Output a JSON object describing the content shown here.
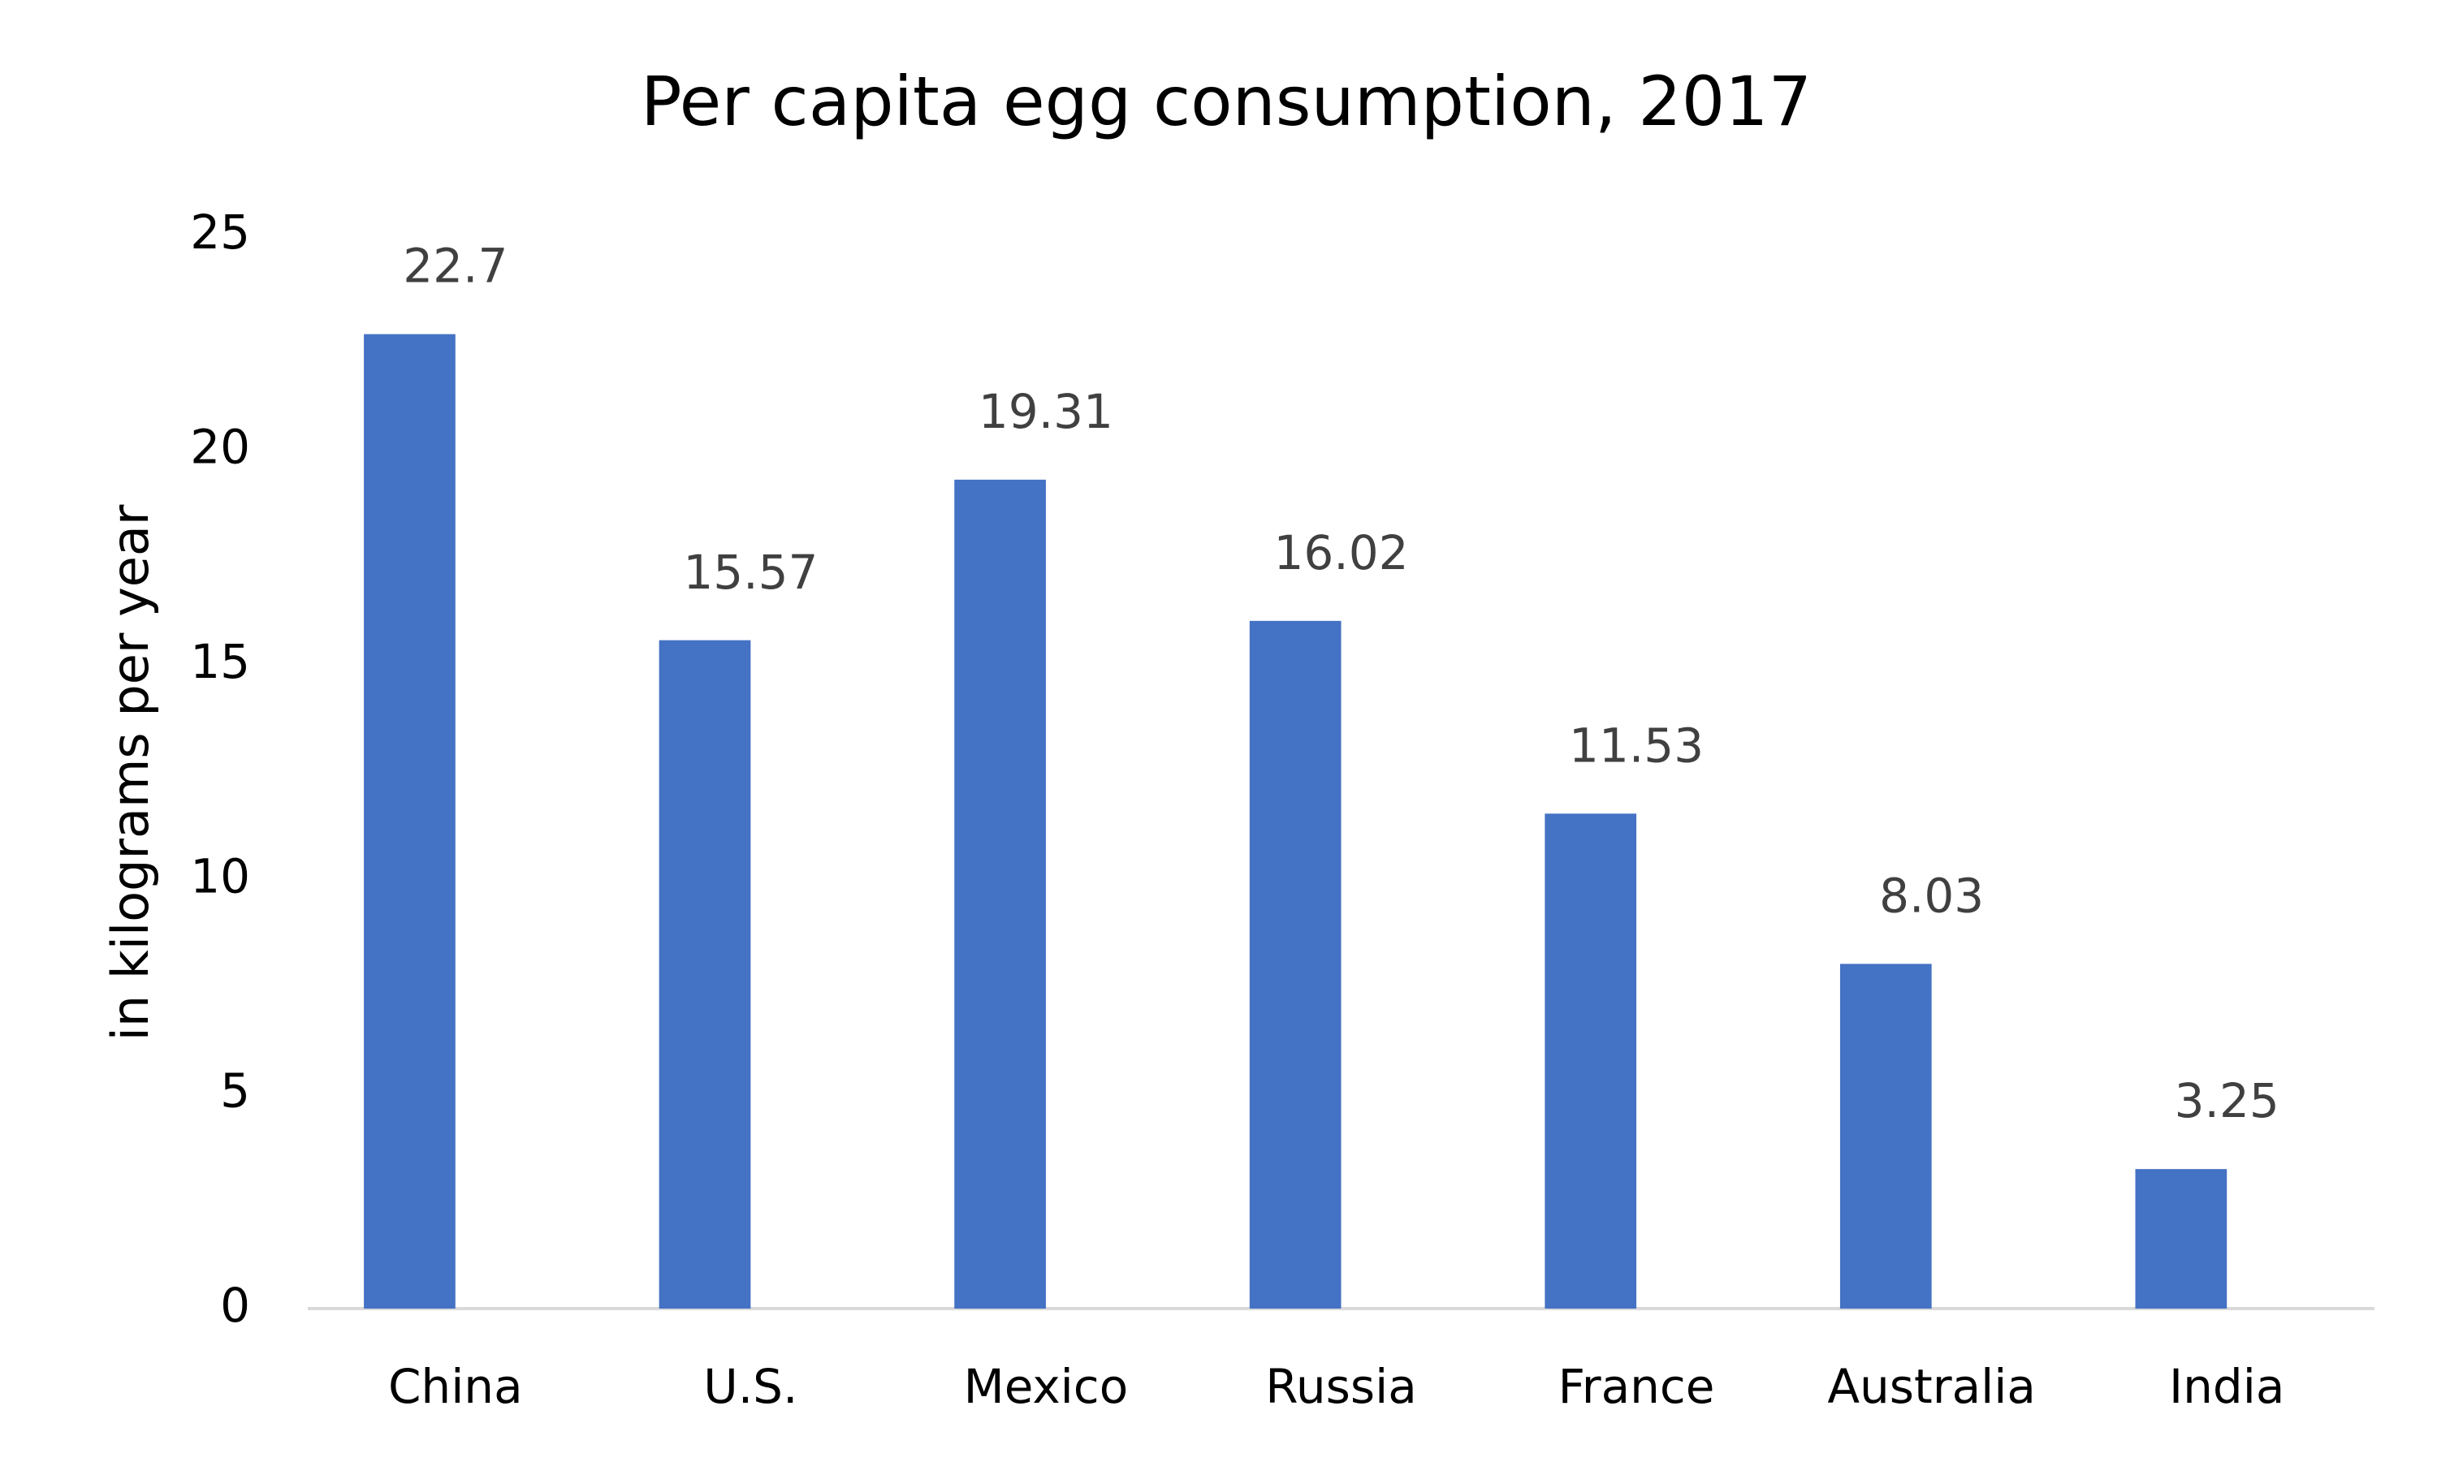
{
  "chart_data": {
    "type": "bar",
    "title": "Per capita egg consumption, 2017",
    "y_label": "in kilograms per year",
    "categories": [
      "China",
      "U.S.",
      "Mexico",
      "Russia",
      "France",
      "Australia",
      "India"
    ],
    "values": [
      22.7,
      15.57,
      19.31,
      16.02,
      11.53,
      8.03,
      3.25
    ],
    "color": "#4472c4",
    "ylim": [
      0,
      25
    ],
    "yticks": [
      0,
      5,
      10,
      15,
      20,
      25
    ],
    "grid": false
  }
}
